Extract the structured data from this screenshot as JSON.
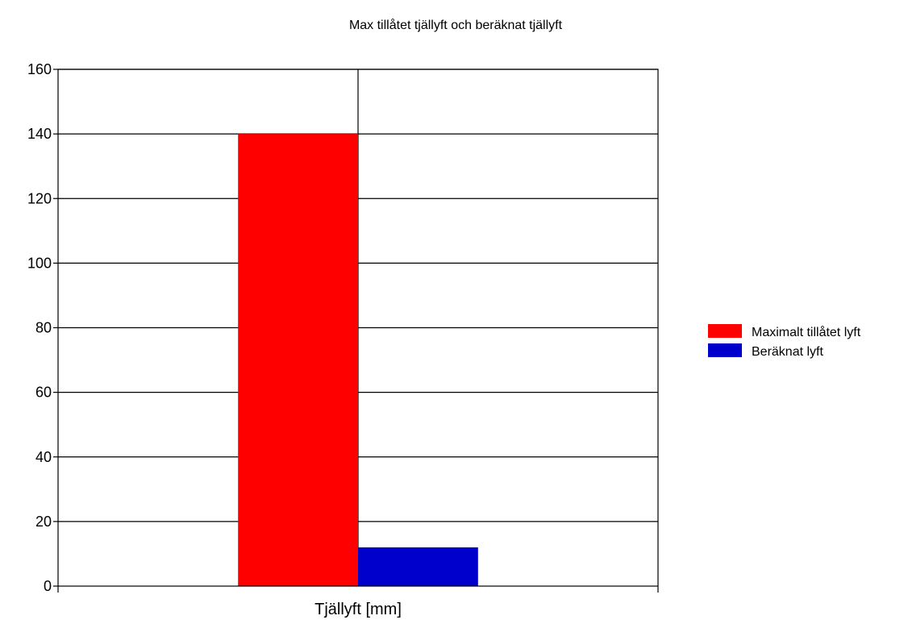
{
  "chart_data": {
    "type": "bar",
    "title": "Max tillåtet tjällyft och beräknat tjällyft",
    "categories": [
      "Tjällyft [mm]"
    ],
    "series": [
      {
        "name": "Maximalt tillåtet lyft",
        "values": [
          140
        ],
        "color": "#ff0000"
      },
      {
        "name": "Beräknat lyft",
        "values": [
          12
        ],
        "color": "#0000cc"
      }
    ],
    "ylim": [
      0,
      160
    ],
    "yticks": [
      0,
      20,
      40,
      60,
      80,
      100,
      120,
      140,
      160
    ],
    "grid": true,
    "legend_position": "right"
  }
}
